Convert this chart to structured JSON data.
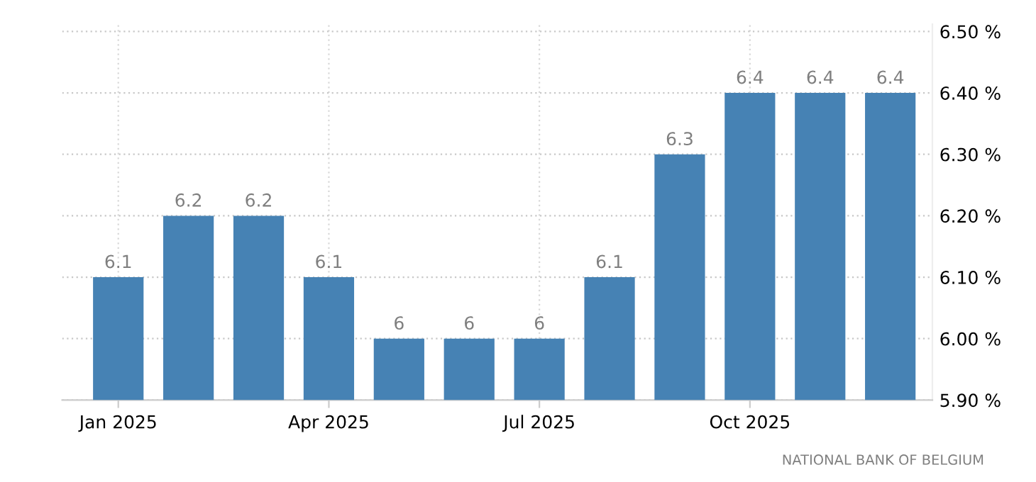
{
  "chart_data": {
    "type": "bar",
    "categories": [
      "Jan 2025",
      null,
      null,
      "Apr 2025",
      null,
      null,
      "Jul 2025",
      null,
      null,
      "Oct 2025",
      null,
      null
    ],
    "values": [
      6.1,
      6.2,
      6.2,
      6.1,
      6,
      6,
      6,
      6.1,
      6.3,
      6.4,
      6.4,
      6.4
    ],
    "color": "#4682b4",
    "ylim": [
      5.9,
      6.5
    ],
    "yticks": [
      {
        "value": 5.9,
        "label": "5.90 %"
      },
      {
        "value": 6.0,
        "label": "6.00 %"
      },
      {
        "value": 6.1,
        "label": "6.10 %"
      },
      {
        "value": 6.2,
        "label": "6.20 %"
      },
      {
        "value": 6.3,
        "label": "6.30 %"
      },
      {
        "value": 6.4,
        "label": "6.40 %"
      },
      {
        "value": 6.5,
        "label": "6.50 %"
      }
    ],
    "grid": true,
    "data_labels": true,
    "annotations": [
      "NATIONAL BANK OF BELGIUM"
    ]
  }
}
